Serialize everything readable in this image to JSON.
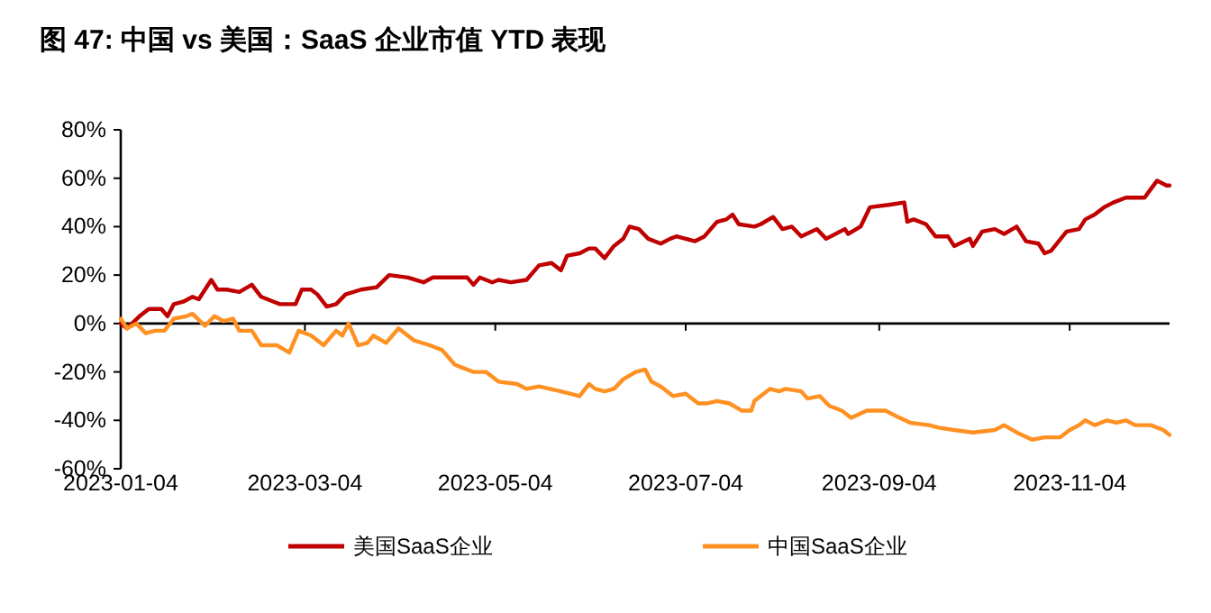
{
  "chart_data": {
    "type": "line",
    "title": "图 47: 中国 vs 美国：SaaS 企业市值 YTD 表现",
    "xlim": [
      "2023-01-04",
      "2023-12-06"
    ],
    "xticks": [
      "2023-01-04",
      "2023-03-04",
      "2023-05-04",
      "2023-07-04",
      "2023-09-04",
      "2023-11-04"
    ],
    "ylim": [
      -60,
      80
    ],
    "yticks": [
      {
        "value": -60,
        "label": "-60%"
      },
      {
        "value": -40,
        "label": "-40%"
      },
      {
        "value": -20,
        "label": "-20%"
      },
      {
        "value": 0,
        "label": "0%"
      },
      {
        "value": 20,
        "label": "20%"
      },
      {
        "value": 40,
        "label": "40%"
      },
      {
        "value": 60,
        "label": "60%"
      },
      {
        "value": 80,
        "label": "80%"
      }
    ],
    "legend": "bottom",
    "series": [
      {
        "name": "美国SaaS企业",
        "color": "#c00000",
        "x": [
          "2023-01-04",
          "2023-01-06",
          "2023-01-10",
          "2023-01-13",
          "2023-01-17",
          "2023-01-19",
          "2023-01-21",
          "2023-01-24",
          "2023-01-27",
          "2023-01-29",
          "2023-02-02",
          "2023-02-04",
          "2023-02-07",
          "2023-02-11",
          "2023-02-15",
          "2023-02-18",
          "2023-02-22",
          "2023-02-24",
          "2023-03-01",
          "2023-03-03",
          "2023-03-06",
          "2023-03-08",
          "2023-03-11",
          "2023-03-14",
          "2023-03-17",
          "2023-03-22",
          "2023-03-27",
          "2023-03-31",
          "2023-04-06",
          "2023-04-11",
          "2023-04-14",
          "2023-04-21",
          "2023-04-25",
          "2023-04-27",
          "2023-04-29",
          "2023-05-03",
          "2023-05-05",
          "2023-05-09",
          "2023-05-14",
          "2023-05-18",
          "2023-05-22",
          "2023-05-25",
          "2023-05-27",
          "2023-05-31",
          "2023-06-03",
          "2023-06-05",
          "2023-06-08",
          "2023-06-11",
          "2023-06-14",
          "2023-06-16",
          "2023-06-19",
          "2023-06-22",
          "2023-06-26",
          "2023-06-29",
          "2023-07-01",
          "2023-07-04",
          "2023-07-07",
          "2023-07-10",
          "2023-07-14",
          "2023-07-17",
          "2023-07-19",
          "2023-07-21",
          "2023-07-26",
          "2023-07-28",
          "2023-08-01",
          "2023-08-04",
          "2023-08-07",
          "2023-08-10",
          "2023-08-15",
          "2023-08-18",
          "2023-08-24",
          "2023-08-25",
          "2023-08-29",
          "2023-09-01",
          "2023-09-07",
          "2023-09-12",
          "2023-09-13",
          "2023-09-15",
          "2023-09-19",
          "2023-09-22",
          "2023-09-26",
          "2023-09-28",
          "2023-10-03",
          "2023-10-04",
          "2023-10-07",
          "2023-10-11",
          "2023-10-14",
          "2023-10-18",
          "2023-10-21",
          "2023-10-25",
          "2023-10-27",
          "2023-10-29",
          "2023-11-03",
          "2023-11-07",
          "2023-11-09",
          "2023-11-12",
          "2023-11-15",
          "2023-11-18",
          "2023-11-22",
          "2023-11-28",
          "2023-12-02",
          "2023-12-05",
          "2023-12-06"
        ],
        "values": [
          0,
          -2,
          3,
          6,
          6,
          3,
          8,
          9,
          11,
          10,
          18,
          14,
          14,
          13,
          16,
          11,
          9,
          8,
          8,
          14,
          14,
          12,
          7,
          8,
          12,
          14,
          15,
          20,
          19,
          17,
          19,
          19,
          19,
          16,
          19,
          17,
          18,
          17,
          18,
          24,
          25,
          22,
          28,
          29,
          31,
          31,
          27,
          32,
          35,
          40,
          39,
          35,
          33,
          35,
          36,
          35,
          34,
          36,
          42,
          43,
          45,
          41,
          40,
          41,
          44,
          39,
          40,
          36,
          39,
          35,
          39,
          37,
          40,
          48,
          49,
          50,
          42,
          43,
          41,
          36,
          36,
          32,
          35,
          32,
          38,
          39,
          37,
          40,
          34,
          33,
          29,
          30,
          38,
          39,
          43,
          45,
          48,
          50,
          52,
          52,
          59,
          57,
          57
        ]
      },
      {
        "name": "中国SaaS企业",
        "color": "#ff9022",
        "x": [
          "2023-01-04",
          "2023-01-06",
          "2023-01-09",
          "2023-01-12",
          "2023-01-15",
          "2023-01-18",
          "2023-01-21",
          "2023-01-25",
          "2023-01-27",
          "2023-01-31",
          "2023-02-03",
          "2023-02-06",
          "2023-02-09",
          "2023-02-11",
          "2023-02-15",
          "2023-02-18",
          "2023-02-23",
          "2023-02-27",
          "2023-03-02",
          "2023-03-06",
          "2023-03-10",
          "2023-03-14",
          "2023-03-16",
          "2023-03-18",
          "2023-03-21",
          "2023-03-24",
          "2023-03-26",
          "2023-03-30",
          "2023-04-03",
          "2023-04-08",
          "2023-04-13",
          "2023-04-17",
          "2023-04-21",
          "2023-04-27",
          "2023-05-01",
          "2023-05-05",
          "2023-05-11",
          "2023-05-14",
          "2023-05-18",
          "2023-05-25",
          "2023-05-31",
          "2023-06-03",
          "2023-06-05",
          "2023-06-08",
          "2023-06-11",
          "2023-06-14",
          "2023-06-18",
          "2023-06-21",
          "2023-06-23",
          "2023-06-26",
          "2023-06-30",
          "2023-07-04",
          "2023-07-08",
          "2023-07-11",
          "2023-07-14",
          "2023-07-18",
          "2023-07-22",
          "2023-07-25",
          "2023-07-26",
          "2023-07-31",
          "2023-08-03",
          "2023-08-05",
          "2023-08-10",
          "2023-08-12",
          "2023-08-16",
          "2023-08-19",
          "2023-08-23",
          "2023-08-26",
          "2023-08-31",
          "2023-09-06",
          "2023-09-09",
          "2023-09-14",
          "2023-09-20",
          "2023-09-23",
          "2023-09-28",
          "2023-10-04",
          "2023-10-11",
          "2023-10-14",
          "2023-10-18",
          "2023-10-23",
          "2023-10-27",
          "2023-11-01",
          "2023-11-04",
          "2023-11-07",
          "2023-11-09",
          "2023-11-12",
          "2023-11-16",
          "2023-11-19",
          "2023-11-22",
          "2023-11-25",
          "2023-11-30",
          "2023-12-04",
          "2023-12-06"
        ],
        "values": [
          2,
          -2,
          0,
          -4,
          -3,
          -3,
          2,
          3,
          4,
          -1,
          3,
          1,
          2,
          -3,
          -3,
          -9,
          -9,
          -12,
          -3,
          -5,
          -9,
          -3,
          -5,
          0,
          -9,
          -8,
          -5,
          -8,
          -2,
          -7,
          -9,
          -11,
          -17,
          -20,
          -20,
          -24,
          -25,
          -27,
          -26,
          -28,
          -30,
          -25,
          -27,
          -28,
          -27,
          -23,
          -20,
          -19,
          -24,
          -26,
          -30,
          -29,
          -33,
          -33,
          -32,
          -33,
          -36,
          -36,
          -32,
          -27,
          -28,
          -27,
          -28,
          -31,
          -30,
          -34,
          -36,
          -39,
          -36,
          -36,
          -38,
          -41,
          -42,
          -43,
          -44,
          -45,
          -44,
          -42,
          -45,
          -48,
          -47,
          -47,
          -44,
          -42,
          -40,
          -42,
          -40,
          -41,
          -40,
          -42,
          -42,
          -44,
          -46
        ]
      }
    ]
  }
}
